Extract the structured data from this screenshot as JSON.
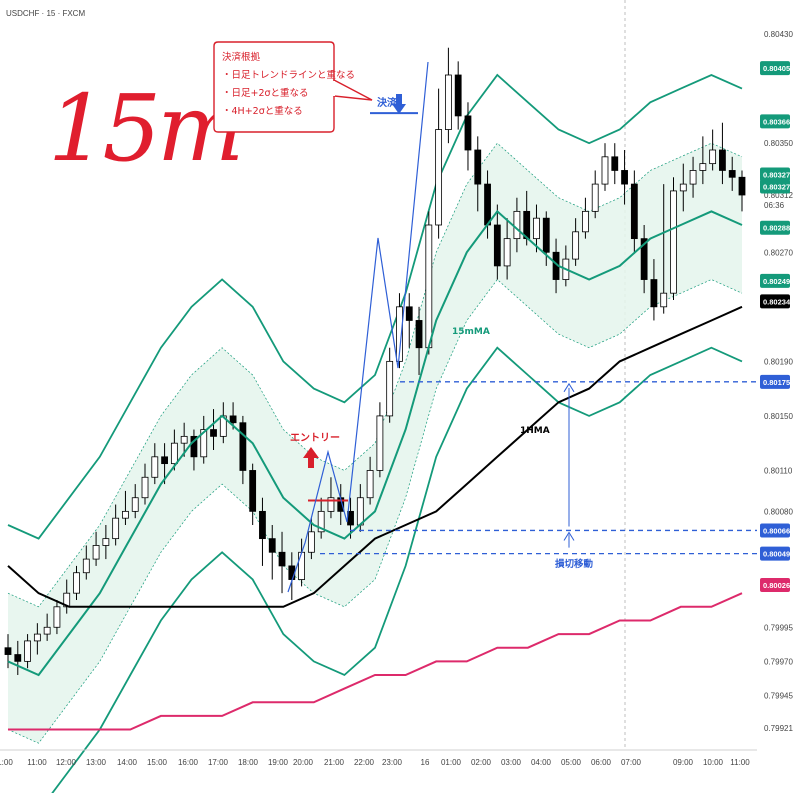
{
  "symbol_label": "USDCHF · 15 · FXCM",
  "handwritten_label": "15m",
  "colors": {
    "candle_up": "#ffffff",
    "candle_down": "#000000",
    "bollinger_15m": "#149a7a",
    "ma_15m": "#149a7a",
    "band_1h": "#149a7a",
    "band_fill": "#e4f4ec",
    "hma_1h": "#000000",
    "long_ma": "#dd2a6b",
    "annotation_blue": "#2f5fd6",
    "annotation_red": "#d8202b"
  },
  "price_axis": {
    "ticks": [
      "0.80430",
      "0.80350",
      "0.80312",
      "0.80270",
      "0.80190",
      "0.80150",
      "0.80110",
      "0.80080",
      "0.79995",
      "0.79970",
      "0.79945",
      "0.79921"
    ],
    "countdown": "06:36",
    "badges": [
      {
        "value": "0.80405",
        "color": "#149a7a"
      },
      {
        "value": "0.80366",
        "color": "#149a7a"
      },
      {
        "value": "0.80327",
        "color": "#149a7a"
      },
      {
        "value": "0.80327",
        "color": "#149a7a"
      },
      {
        "value": "0.80288",
        "color": "#149a7a"
      },
      {
        "value": "0.80249",
        "color": "#149a7a"
      },
      {
        "value": "0.80234",
        "color": "#000000"
      },
      {
        "value": "0.80175",
        "color": "#2f5fd6"
      },
      {
        "value": "0.80066",
        "color": "#2f5fd6"
      },
      {
        "value": "0.80049",
        "color": "#2f5fd6"
      },
      {
        "value": "0.80026",
        "color": "#dd2a6b"
      }
    ]
  },
  "time_axis": [
    "1:00",
    "11:00",
    "12:00",
    "13:00",
    "14:00",
    "15:00",
    "16:00",
    "17:00",
    "18:00",
    "19:00",
    "20:00",
    "21:00",
    "22:00",
    "23:00",
    "16",
    "01:00",
    "02:00",
    "03:00",
    "04:00",
    "05:00",
    "06:00",
    "07:00",
    "09:00",
    "10:00",
    "11:00"
  ],
  "annotations": {
    "note_lines": [
      "決済根拠",
      "・日足トレンドラインと重なる",
      "・日足+2σと重なる",
      "・4H+2σと重なる"
    ],
    "settle_label": "決済",
    "entry_label": "エントリー",
    "ma_label": "15mMA",
    "hma_label": "1HMA",
    "stop_label": "損切移動"
  },
  "chart_data": {
    "type": "candlestick",
    "title": "",
    "ylim": [
      0.79905,
      0.80455
    ],
    "x_labels": [
      "1:00",
      "11:00",
      "12:00",
      "13:00",
      "14:00",
      "15:00",
      "16:00",
      "17:00",
      "18:00",
      "19:00",
      "20:00",
      "21:00",
      "22:00",
      "23:00",
      "16",
      "01:00",
      "02:00",
      "03:00",
      "04:00",
      "05:00",
      "06:00",
      "07:00",
      "09:00",
      "10:00",
      "11:00"
    ],
    "levels": {
      "target": 0.80175,
      "stop_1": 0.80066,
      "stop_2": 0.80049,
      "settle": 0.80372,
      "entry": 0.80088,
      "last_price": 0.80312
    },
    "series": [
      {
        "name": "15mMA",
        "values": [
          0.7997,
          0.7996,
          0.7999,
          0.8002,
          0.8006,
          0.801,
          0.8013,
          0.8015,
          0.8013,
          0.8009,
          0.8007,
          0.8006,
          0.8008,
          0.8014,
          0.8022,
          0.8027,
          0.803,
          0.8028,
          0.8026,
          0.8025,
          0.8026,
          0.8028,
          0.8029,
          0.803,
          0.8029
        ]
      },
      {
        "name": "1HMA",
        "values": [
          0.8004,
          0.8002,
          0.8001,
          0.8001,
          0.8001,
          0.8001,
          0.8001,
          0.8001,
          0.8001,
          0.8001,
          0.8002,
          0.8004,
          0.8006,
          0.8007,
          0.8008,
          0.801,
          0.8012,
          0.8014,
          0.8016,
          0.8017,
          0.8019,
          0.802,
          0.8021,
          0.8022,
          0.8023
        ]
      },
      {
        "name": "",
        "values": [
          0.7992,
          0.7992,
          0.7992,
          0.7992,
          0.7992,
          0.7993,
          0.7993,
          0.7993,
          0.7994,
          0.7994,
          0.7994,
          0.7995,
          0.7996,
          0.7996,
          0.7997,
          0.7997,
          0.7998,
          0.7998,
          0.7999,
          0.7999,
          0.8,
          0.8,
          0.8001,
          0.8001,
          0.8002
        ]
      }
    ],
    "candles": [
      [
        0.7998,
        0.79975,
        0.7999,
        0.79965
      ],
      [
        0.79975,
        0.7997,
        0.79985,
        0.7996
      ],
      [
        0.7997,
        0.79985,
        0.7999,
        0.79965
      ],
      [
        0.79985,
        0.7999,
        0.79998,
        0.79975
      ],
      [
        0.7999,
        0.79995,
        0.80005,
        0.79985
      ],
      [
        0.79995,
        0.8001,
        0.80015,
        0.7999
      ],
      [
        0.8001,
        0.8002,
        0.8003,
        0.80005
      ],
      [
        0.8002,
        0.80035,
        0.8004,
        0.80015
      ],
      [
        0.80035,
        0.80045,
        0.80055,
        0.8003
      ],
      [
        0.80045,
        0.80055,
        0.80065,
        0.8004
      ],
      [
        0.80055,
        0.8006,
        0.8007,
        0.80045
      ],
      [
        0.8006,
        0.80075,
        0.80085,
        0.80055
      ],
      [
        0.80075,
        0.8008,
        0.80095,
        0.8007
      ],
      [
        0.8008,
        0.8009,
        0.801,
        0.80075
      ],
      [
        0.8009,
        0.80105,
        0.80115,
        0.80085
      ],
      [
        0.80105,
        0.8012,
        0.8013,
        0.801
      ],
      [
        0.8012,
        0.80115,
        0.8013,
        0.801
      ],
      [
        0.80115,
        0.8013,
        0.8014,
        0.8011
      ],
      [
        0.8013,
        0.80135,
        0.80145,
        0.8012
      ],
      [
        0.80135,
        0.8012,
        0.8014,
        0.8011
      ],
      [
        0.8012,
        0.8014,
        0.8015,
        0.80115
      ],
      [
        0.8014,
        0.80135,
        0.80155,
        0.80125
      ],
      [
        0.80135,
        0.8015,
        0.8016,
        0.8013
      ],
      [
        0.8015,
        0.80145,
        0.8016,
        0.8014
      ],
      [
        0.80145,
        0.8011,
        0.8015,
        0.801
      ],
      [
        0.8011,
        0.8008,
        0.80115,
        0.8007
      ],
      [
        0.8008,
        0.8006,
        0.8009,
        0.8004
      ],
      [
        0.8006,
        0.8005,
        0.8007,
        0.8003
      ],
      [
        0.8005,
        0.8004,
        0.80065,
        0.8002
      ],
      [
        0.8004,
        0.8003,
        0.8005,
        0.80015
      ],
      [
        0.8003,
        0.8005,
        0.8006,
        0.80025
      ],
      [
        0.8005,
        0.80065,
        0.80075,
        0.80045
      ],
      [
        0.80065,
        0.8008,
        0.8009,
        0.8006
      ],
      [
        0.8008,
        0.8009,
        0.80105,
        0.80075
      ],
      [
        0.8009,
        0.8008,
        0.801,
        0.8007
      ],
      [
        0.8008,
        0.8007,
        0.8009,
        0.8006
      ],
      [
        0.8007,
        0.8009,
        0.801,
        0.80065
      ],
      [
        0.8009,
        0.8011,
        0.8012,
        0.80085
      ],
      [
        0.8011,
        0.8015,
        0.8016,
        0.80105
      ],
      [
        0.8015,
        0.8019,
        0.802,
        0.80145
      ],
      [
        0.8019,
        0.8023,
        0.8024,
        0.80185
      ],
      [
        0.8023,
        0.8022,
        0.8024,
        0.802
      ],
      [
        0.8022,
        0.802,
        0.8023,
        0.8018
      ],
      [
        0.802,
        0.8029,
        0.803,
        0.80195
      ],
      [
        0.8029,
        0.8036,
        0.8039,
        0.8028
      ],
      [
        0.8036,
        0.804,
        0.8042,
        0.8035
      ],
      [
        0.804,
        0.8037,
        0.8041,
        0.8036
      ],
      [
        0.8037,
        0.80345,
        0.8038,
        0.8033
      ],
      [
        0.80345,
        0.8032,
        0.80355,
        0.803
      ],
      [
        0.8032,
        0.8029,
        0.8033,
        0.8028
      ],
      [
        0.8029,
        0.8026,
        0.80305,
        0.8025
      ],
      [
        0.8026,
        0.8028,
        0.80295,
        0.8025
      ],
      [
        0.8028,
        0.803,
        0.8031,
        0.8027
      ],
      [
        0.803,
        0.8028,
        0.80315,
        0.80275
      ],
      [
        0.8028,
        0.80295,
        0.80305,
        0.8027
      ],
      [
        0.80295,
        0.8027,
        0.803,
        0.8026
      ],
      [
        0.8027,
        0.8025,
        0.8028,
        0.8024
      ],
      [
        0.8025,
        0.80265,
        0.80275,
        0.80245
      ],
      [
        0.80265,
        0.80285,
        0.80295,
        0.8026
      ],
      [
        0.80285,
        0.803,
        0.8031,
        0.8028
      ],
      [
        0.803,
        0.8032,
        0.8033,
        0.80295
      ],
      [
        0.8032,
        0.8034,
        0.8035,
        0.80315
      ],
      [
        0.8034,
        0.8033,
        0.8035,
        0.8032
      ],
      [
        0.8033,
        0.8032,
        0.80345,
        0.80305
      ],
      [
        0.8032,
        0.8028,
        0.8033,
        0.8027
      ],
      [
        0.8028,
        0.8025,
        0.8029,
        0.8024
      ],
      [
        0.8025,
        0.8023,
        0.80265,
        0.8022
      ],
      [
        0.8023,
        0.8024,
        0.8032,
        0.80225
      ],
      [
        0.8024,
        0.80315,
        0.80325,
        0.80235
      ],
      [
        0.80315,
        0.8032,
        0.80335,
        0.803
      ],
      [
        0.8032,
        0.8033,
        0.8034,
        0.8031
      ],
      [
        0.8033,
        0.80335,
        0.80355,
        0.8032
      ],
      [
        0.80335,
        0.80345,
        0.8036,
        0.8033
      ],
      [
        0.80345,
        0.8033,
        0.80365,
        0.8032
      ],
      [
        0.8033,
        0.80325,
        0.8034,
        0.80315
      ],
      [
        0.80325,
        0.80312,
        0.8033,
        0.803
      ]
    ]
  }
}
